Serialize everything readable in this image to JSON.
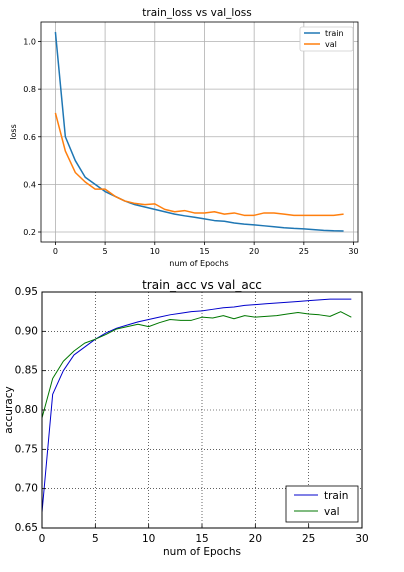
{
  "chart_data": [
    {
      "type": "line",
      "title": "train_loss vs val_loss",
      "xlabel": "num of Epochs",
      "ylabel": "loss",
      "xlim": [
        -1.45,
        30.45
      ],
      "ylim": [
        0.158,
        1.082
      ],
      "xticks": [
        "0",
        "5",
        "10",
        "15",
        "20",
        "25",
        "30"
      ],
      "yticks": [
        "0.2",
        "0.4",
        "0.6",
        "0.8",
        "1.0"
      ],
      "grid": true,
      "legend_position": "top-right",
      "colors": {
        "train": "#1f77b4",
        "val": "#ff7f0e"
      },
      "x": [
        0,
        1,
        2,
        3,
        4,
        5,
        6,
        7,
        8,
        9,
        10,
        11,
        12,
        13,
        14,
        15,
        16,
        17,
        18,
        19,
        20,
        21,
        22,
        23,
        24,
        25,
        26,
        27,
        28,
        29
      ],
      "series": [
        {
          "name": "train",
          "values": [
            1.04,
            0.6,
            0.5,
            0.43,
            0.4,
            0.37,
            0.35,
            0.33,
            0.315,
            0.305,
            0.295,
            0.285,
            0.275,
            0.268,
            0.262,
            0.255,
            0.248,
            0.245,
            0.238,
            0.233,
            0.23,
            0.226,
            0.222,
            0.218,
            0.215,
            0.213,
            0.21,
            0.207,
            0.205,
            0.204
          ]
        },
        {
          "name": "val",
          "values": [
            0.7,
            0.54,
            0.45,
            0.41,
            0.38,
            0.38,
            0.35,
            0.33,
            0.32,
            0.315,
            0.318,
            0.295,
            0.285,
            0.29,
            0.28,
            0.28,
            0.285,
            0.275,
            0.28,
            0.27,
            0.27,
            0.28,
            0.28,
            0.275,
            0.27,
            0.27,
            0.27,
            0.27,
            0.27,
            0.275
          ]
        }
      ]
    },
    {
      "type": "line",
      "title": "train_acc vs val_acc",
      "xlabel": "num of Epochs",
      "ylabel": "accuracy",
      "xlim": [
        0,
        30
      ],
      "ylim": [
        0.65,
        0.95
      ],
      "xticks": [
        "0",
        "5",
        "10",
        "15",
        "20",
        "25",
        "30"
      ],
      "yticks": [
        "0.65",
        "0.70",
        "0.75",
        "0.80",
        "0.85",
        "0.90",
        "0.95"
      ],
      "grid": true,
      "legend_position": "bottom-right",
      "colors": {
        "train": "#0000cc",
        "val": "#007700"
      },
      "x": [
        0,
        1,
        2,
        3,
        4,
        5,
        6,
        7,
        8,
        9,
        10,
        11,
        12,
        13,
        14,
        15,
        16,
        17,
        18,
        19,
        20,
        21,
        22,
        23,
        24,
        25,
        26,
        27,
        28,
        29
      ],
      "series": [
        {
          "name": "train",
          "values": [
            0.67,
            0.82,
            0.85,
            0.87,
            0.88,
            0.89,
            0.898,
            0.904,
            0.908,
            0.912,
            0.915,
            0.918,
            0.921,
            0.923,
            0.925,
            0.926,
            0.928,
            0.93,
            0.931,
            0.933,
            0.934,
            0.935,
            0.936,
            0.937,
            0.938,
            0.939,
            0.94,
            0.941,
            0.941,
            0.941
          ]
        },
        {
          "name": "val",
          "values": [
            0.79,
            0.84,
            0.862,
            0.875,
            0.885,
            0.89,
            0.896,
            0.903,
            0.906,
            0.909,
            0.906,
            0.911,
            0.915,
            0.914,
            0.914,
            0.918,
            0.917,
            0.92,
            0.916,
            0.92,
            0.918,
            0.919,
            0.92,
            0.922,
            0.924,
            0.922,
            0.921,
            0.919,
            0.925,
            0.918
          ]
        }
      ]
    }
  ]
}
